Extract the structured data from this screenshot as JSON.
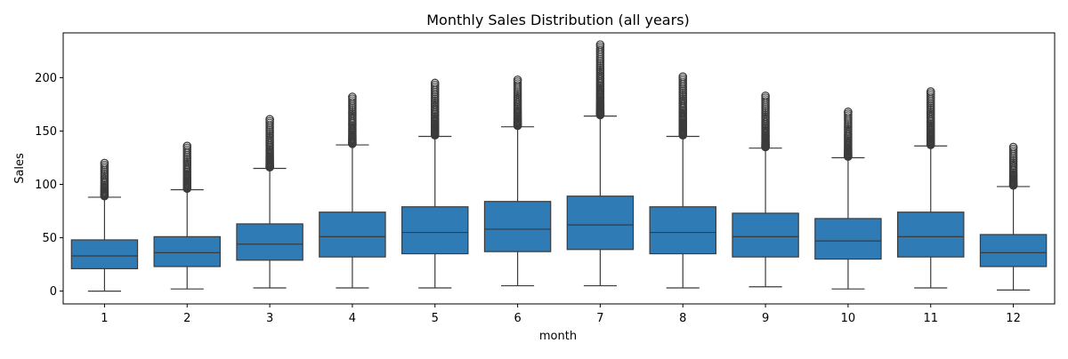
{
  "chart_data": {
    "type": "box",
    "title": "Monthly Sales Distribution (all years)",
    "xlabel": "month",
    "ylabel": "Sales",
    "ylim": [
      -12,
      242
    ],
    "yticks": [
      0,
      50,
      100,
      150,
      200
    ],
    "grid": false,
    "colors": {
      "box": "#2f7bb6",
      "line": "#3b3b3b"
    },
    "categories": [
      "1",
      "2",
      "3",
      "4",
      "5",
      "6",
      "7",
      "8",
      "9",
      "10",
      "11",
      "12"
    ],
    "boxes": [
      {
        "month": "1",
        "whisker_low": 0,
        "q1": 21,
        "median": 33,
        "q3": 48,
        "whisker_high": 88,
        "outliers_start": 89,
        "outliers_max": 120
      },
      {
        "month": "2",
        "whisker_low": 2,
        "q1": 23,
        "median": 36,
        "q3": 51,
        "whisker_high": 95,
        "outliers_start": 96,
        "outliers_max": 136
      },
      {
        "month": "3",
        "whisker_low": 3,
        "q1": 29,
        "median": 44,
        "q3": 63,
        "whisker_high": 115,
        "outliers_start": 116,
        "outliers_max": 161
      },
      {
        "month": "4",
        "whisker_low": 3,
        "q1": 32,
        "median": 51,
        "q3": 74,
        "whisker_high": 137,
        "outliers_start": 138,
        "outliers_max": 182
      },
      {
        "month": "5",
        "whisker_low": 3,
        "q1": 35,
        "median": 55,
        "q3": 79,
        "whisker_high": 145,
        "outliers_start": 146,
        "outliers_max": 195
      },
      {
        "month": "6",
        "whisker_low": 5,
        "q1": 37,
        "median": 58,
        "q3": 84,
        "whisker_high": 154,
        "outliers_start": 155,
        "outliers_max": 198
      },
      {
        "month": "7",
        "whisker_low": 5,
        "q1": 39,
        "median": 62,
        "q3": 89,
        "whisker_high": 164,
        "outliers_start": 165,
        "outliers_max": 231
      },
      {
        "month": "8",
        "whisker_low": 3,
        "q1": 35,
        "median": 55,
        "q3": 79,
        "whisker_high": 145,
        "outliers_start": 146,
        "outliers_max": 201
      },
      {
        "month": "9",
        "whisker_low": 4,
        "q1": 32,
        "median": 51,
        "q3": 73,
        "whisker_high": 134,
        "outliers_start": 135,
        "outliers_max": 183
      },
      {
        "month": "10",
        "whisker_low": 2,
        "q1": 30,
        "median": 47,
        "q3": 68,
        "whisker_high": 125,
        "outliers_start": 126,
        "outliers_max": 168
      },
      {
        "month": "11",
        "whisker_low": 3,
        "q1": 32,
        "median": 51,
        "q3": 74,
        "whisker_high": 136,
        "outliers_start": 137,
        "outliers_max": 187
      },
      {
        "month": "12",
        "whisker_low": 1,
        "q1": 23,
        "median": 36,
        "q3": 53,
        "whisker_high": 98,
        "outliers_start": 99,
        "outliers_max": 135
      }
    ]
  }
}
